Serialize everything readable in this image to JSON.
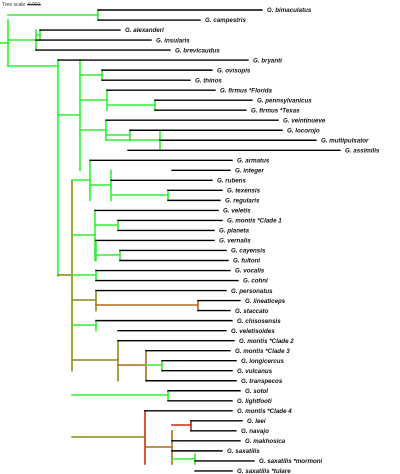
{
  "tree_scale": {
    "label": "Tree scale: 0.001"
  },
  "colors": {
    "green": "#33ee33",
    "olive": "#8a8a1a",
    "brown": "#b06a18",
    "red": "#cc2a14",
    "terminal": "#000000"
  },
  "taxa": [
    "G. bimaculatus",
    "G. campestris",
    "G. alexanderi",
    "G. insularis",
    "G. brevicaudus",
    "G. bryanti",
    "G. ovisopis",
    "G. thinos",
    "G. firmus *Florida",
    "G. pennsylvanicus",
    "G. firmus *Texas",
    "G. veintinueve",
    "G. locorojo",
    "G. multipulsator",
    "G. assimilis",
    "G. armatus",
    "G. integer",
    "G. rubens",
    "G. texensis",
    "G. regularis",
    "G. veletis",
    "G. montis *Clade 1",
    "G. planeta",
    "G. vernalis",
    "G. cayensis",
    "G. fultoni",
    "G. vocalis",
    "G. cohni",
    "G. personatus",
    "G. lineaticeps",
    "G. staccato",
    "G. chisosensis",
    "G. veletisoides",
    "G. montis *Clade 2",
    "G. montis *Clade 3",
    "G. longicercus",
    "G. vulcanus",
    "G. transpecos",
    "G. sotol",
    "G. lightfooti",
    "G. montis *Clade 4",
    "G. leei",
    "G. navajo",
    "G. makhosica",
    "G. saxatilis",
    "G. saxatilis *mormoni",
    "G. saxatilis *tulare"
  ]
}
